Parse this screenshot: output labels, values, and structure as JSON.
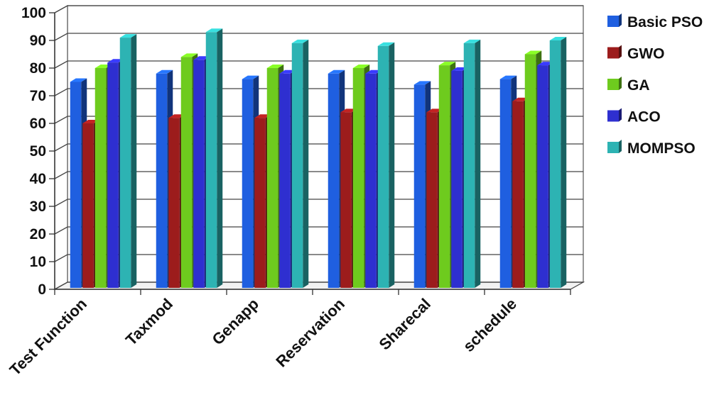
{
  "chart_data": {
    "type": "bar",
    "categories": [
      "Test Function",
      "Taxmod",
      "Genapp",
      "Reservation",
      "Sharecal",
      "schedule"
    ],
    "series": [
      {
        "name": "Basic PSO",
        "color": "#1f5fe0",
        "values": [
          75,
          78,
          76,
          78,
          74,
          76
        ]
      },
      {
        "name": "GWO",
        "color": "#9c1c1c",
        "values": [
          60,
          62,
          62,
          64,
          64,
          68
        ]
      },
      {
        "name": "GA",
        "color": "#6ecb1e",
        "values": [
          80,
          84,
          80,
          80,
          81,
          85
        ]
      },
      {
        "name": "ACO",
        "color": "#2e2fd0",
        "values": [
          82,
          83,
          78,
          78,
          79,
          81
        ]
      },
      {
        "name": "MOMPSO",
        "color": "#2db3b3",
        "values": [
          91,
          93,
          89,
          88,
          89,
          90
        ]
      }
    ],
    "yticks": [
      "0",
      "10",
      "20",
      "30",
      "40",
      "50",
      "60",
      "70",
      "80",
      "90",
      "100"
    ],
    "ylim": [
      0,
      100
    ],
    "grid": true,
    "legend_position": "right",
    "title": "",
    "xlabel": "",
    "ylabel": ""
  }
}
